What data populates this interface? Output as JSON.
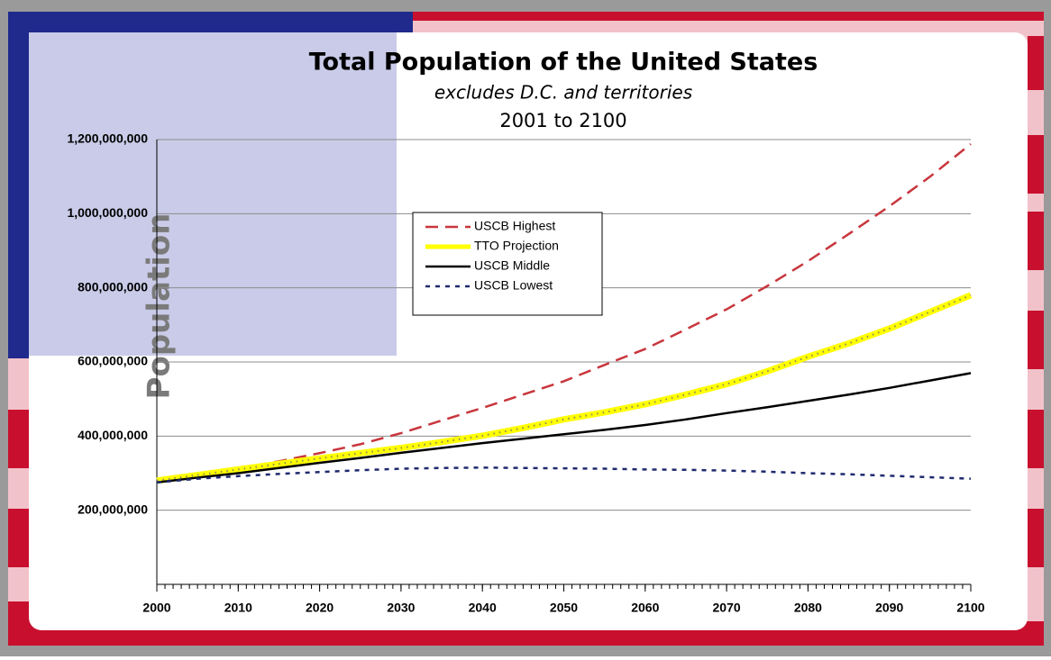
{
  "chart_data": {
    "type": "line",
    "title": "Total Population of the United States",
    "subtitle": "excludes D.C. and territories",
    "period": "2001 to 2100",
    "y_label": "Population",
    "xlim": [
      2000,
      2100
    ],
    "xticks": [
      2000,
      2010,
      2020,
      2030,
      2040,
      2050,
      2060,
      2070,
      2080,
      2090,
      2100
    ],
    "ylim": [
      0,
      1200000000
    ],
    "yticks": [
      {
        "value": 200000000,
        "label": "200,000,000"
      },
      {
        "value": 400000000,
        "label": "400,000,000"
      },
      {
        "value": 600000000,
        "label": "600,000,000"
      },
      {
        "value": 800000000,
        "label": "800,000,000"
      },
      {
        "value": 1000000000,
        "label": "1,000,000,000"
      },
      {
        "value": 1200000000,
        "label": "1,200,000,000"
      }
    ],
    "grid": true,
    "legend": "center",
    "x": [
      2000,
      2005,
      2010,
      2015,
      2020,
      2025,
      2030,
      2035,
      2040,
      2045,
      2050,
      2055,
      2060,
      2065,
      2070,
      2075,
      2080,
      2085,
      2090,
      2095,
      2100
    ],
    "series": [
      {
        "name": "USCB Highest",
        "color": "#c8363c",
        "style": "dashed",
        "values": [
          280000000,
          295000000,
          312000000,
          332000000,
          354000000,
          378000000,
          408000000,
          442000000,
          476000000,
          512000000,
          548000000,
          592000000,
          635000000,
          688000000,
          742000000,
          805000000,
          872000000,
          945000000,
          1020000000,
          1100000000,
          1188000000
        ]
      },
      {
        "name": "TTO Projection",
        "color": "#ffff00",
        "style": "highlight",
        "values": [
          280000000,
          295000000,
          310000000,
          325000000,
          340000000,
          354000000,
          368000000,
          384000000,
          401000000,
          422000000,
          445000000,
          464000000,
          486000000,
          512000000,
          540000000,
          575000000,
          614000000,
          650000000,
          690000000,
          735000000,
          780000000
        ]
      },
      {
        "name": "USCB Middle",
        "color": "#000000",
        "style": "solid",
        "values": [
          275000000,
          288000000,
          300000000,
          314000000,
          328000000,
          341000000,
          355000000,
          368000000,
          381000000,
          393000000,
          405000000,
          417000000,
          430000000,
          445000000,
          462000000,
          478000000,
          495000000,
          512000000,
          530000000,
          550000000,
          570000000
        ]
      },
      {
        "name": "USCB Lowest",
        "color": "#1f2a6e",
        "style": "dotted",
        "values": [
          275000000,
          285000000,
          292000000,
          298000000,
          303000000,
          308000000,
          312000000,
          314000000,
          315000000,
          314000000,
          313000000,
          312000000,
          310000000,
          309000000,
          307000000,
          304000000,
          300000000,
          297000000,
          293000000,
          289000000,
          285000000
        ]
      }
    ]
  }
}
